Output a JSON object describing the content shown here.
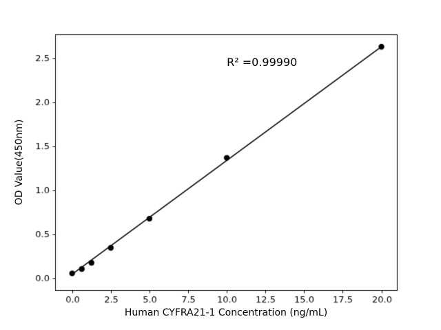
{
  "chart_data": {
    "type": "scatter",
    "title": "",
    "xlabel": "Human CYFRA21-1 Concentration (ng/mL)",
    "ylabel": "OD Value(450nm)",
    "annotation": "R² =0.99990",
    "annotation_xy": [
      10.0,
      2.45
    ],
    "x": [
      0,
      0.625,
      1.25,
      2.5,
      5,
      10,
      20
    ],
    "y": [
      0.06,
      0.11,
      0.18,
      0.35,
      0.68,
      1.37,
      2.63
    ],
    "fit_line": {
      "x": [
        0,
        20
      ],
      "y": [
        0.05,
        2.63
      ]
    },
    "xticks": [
      0.0,
      2.5,
      5.0,
      7.5,
      10.0,
      12.5,
      15.0,
      17.5,
      20.0
    ],
    "xtick_labels": [
      "0.0",
      "2.5",
      "5.0",
      "7.5",
      "10.0",
      "12.5",
      "15.0",
      "17.5",
      "20.0"
    ],
    "yticks": [
      0.0,
      0.5,
      1.0,
      1.5,
      2.0,
      2.5
    ],
    "ytick_labels": [
      "0.0",
      "0.5",
      "1.0",
      "1.5",
      "2.0",
      "2.5"
    ],
    "xlim": [
      -1.1,
      21.0
    ],
    "ylim": [
      -0.13,
      2.77
    ],
    "grid": false,
    "legend": "none",
    "marker_color": "#000000",
    "line_color": "#000000",
    "axis_color": "#000000",
    "background": "#ffffff"
  }
}
